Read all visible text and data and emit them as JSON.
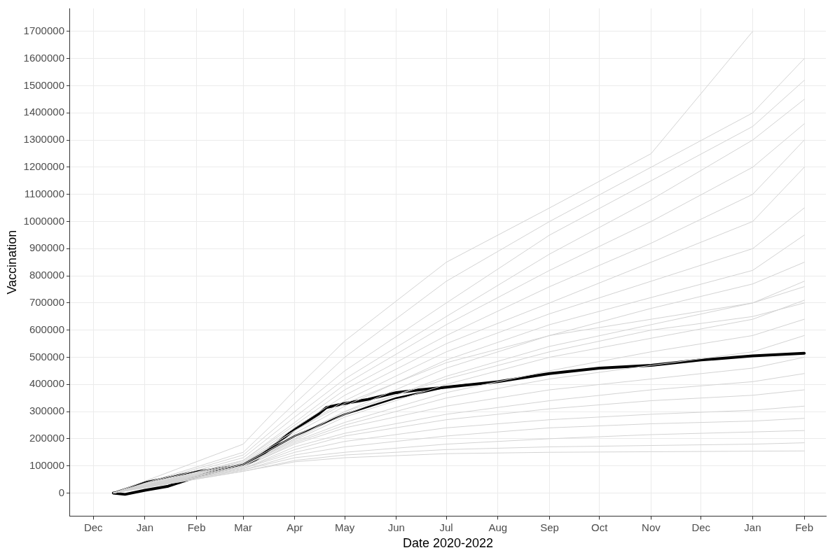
{
  "chart_data": {
    "type": "line",
    "xlabel": "Date 2020-2022",
    "ylabel": "Vaccination",
    "xlim": [
      "2020-11-17",
      "2022-02-14"
    ],
    "xticks": [
      {
        "value": "2020-12-01",
        "label": "Dec"
      },
      {
        "value": "2021-01-01",
        "label": "Jan"
      },
      {
        "value": "2021-02-01",
        "label": "Feb"
      },
      {
        "value": "2021-03-01",
        "label": "Mar"
      },
      {
        "value": "2021-04-01",
        "label": "Apr"
      },
      {
        "value": "2021-05-01",
        "label": "May"
      },
      {
        "value": "2021-06-01",
        "label": "Jun"
      },
      {
        "value": "2021-07-01",
        "label": "Jul"
      },
      {
        "value": "2021-08-01",
        "label": "Aug"
      },
      {
        "value": "2021-09-01",
        "label": "Sep"
      },
      {
        "value": "2021-10-01",
        "label": "Oct"
      },
      {
        "value": "2021-11-01",
        "label": "Nov"
      },
      {
        "value": "2021-12-01",
        "label": "Dec"
      },
      {
        "value": "2022-01-01",
        "label": "Jan"
      },
      {
        "value": "2022-02-01",
        "label": "Feb"
      }
    ],
    "ylim": [
      -85000,
      1785000
    ],
    "yticks": [
      0,
      100000,
      200000,
      300000,
      400000,
      500000,
      600000,
      700000,
      800000,
      900000,
      1000000,
      1100000,
      1200000,
      1300000,
      1400000,
      1500000,
      1600000,
      1700000
    ],
    "grid": true,
    "legend": false,
    "marker": "none",
    "x": [
      "2020-12-13",
      "2021-03-01",
      "2021-04-01",
      "2021-05-01",
      "2021-07-01",
      "2021-09-01",
      "2021-11-01",
      "2022-01-01",
      "2022-02-01"
    ],
    "series": [
      {
        "color": "#d3d3d3",
        "values": [
          0,
          180000,
          380000,
          560000,
          850000,
          1050000,
          1250000,
          1700000,
          null
        ]
      },
      {
        "color": "#d3d3d3",
        "values": [
          0,
          150000,
          330000,
          500000,
          780000,
          1000000,
          1200000,
          1400000,
          1600000
        ]
      },
      {
        "color": "#d3d3d3",
        "values": [
          0,
          140000,
          300000,
          450000,
          700000,
          950000,
          1150000,
          1350000,
          1520000
        ]
      },
      {
        "color": "#d3d3d3",
        "values": [
          0,
          130000,
          280000,
          420000,
          650000,
          880000,
          1080000,
          1300000,
          1450000
        ]
      },
      {
        "color": "#d3d3d3",
        "values": [
          0,
          120000,
          260000,
          400000,
          620000,
          820000,
          1000000,
          1200000,
          1360000
        ]
      },
      {
        "color": "#d3d3d3",
        "values": [
          0,
          120000,
          250000,
          380000,
          580000,
          760000,
          920000,
          1100000,
          1300000
        ]
      },
      {
        "color": "#d3d3d3",
        "values": [
          0,
          115000,
          240000,
          360000,
          550000,
          700000,
          850000,
          1000000,
          1200000
        ]
      },
      {
        "color": "#d3d3d3",
        "values": [
          0,
          110000,
          230000,
          340000,
          520000,
          660000,
          780000,
          900000,
          1050000
        ]
      },
      {
        "color": "#d3d3d3",
        "values": [
          0,
          110000,
          220000,
          320000,
          490000,
          620000,
          720000,
          820000,
          950000
        ]
      },
      {
        "color": "#d3d3d3",
        "values": [
          0,
          105000,
          210000,
          300000,
          460000,
          580000,
          680000,
          770000,
          850000
        ]
      },
      {
        "color": "#d3d3d3",
        "values": [
          0,
          110000,
          230000,
          330000,
          480000,
          580000,
          640000,
          700000,
          760000
        ]
      },
      {
        "color": "#d3d3d3",
        "values": [
          0,
          100000,
          200000,
          290000,
          430000,
          540000,
          620000,
          700000,
          780000
        ]
      },
      {
        "color": "#d3d3d3",
        "values": [
          0,
          100000,
          200000,
          300000,
          420000,
          520000,
          600000,
          650000,
          700000
        ]
      },
      {
        "color": "#d3d3d3",
        "values": [
          0,
          100000,
          195000,
          280000,
          400000,
          500000,
          570000,
          640000,
          710000
        ]
      },
      {
        "color": "#d3d3d3",
        "values": [
          0,
          100000,
          190000,
          260000,
          370000,
          450000,
          520000,
          580000,
          640000
        ]
      },
      {
        "color": "#d3d3d3",
        "values": [
          0,
          95000,
          185000,
          250000,
          350000,
          420000,
          470000,
          520000,
          580000
        ]
      },
      {
        "color": "#d3d3d3",
        "values": [
          0,
          95000,
          180000,
          240000,
          320000,
          380000,
          420000,
          460000,
          500000
        ]
      },
      {
        "color": "#d3d3d3",
        "values": [
          0,
          90000,
          170000,
          220000,
          290000,
          340000,
          380000,
          410000,
          440000
        ]
      },
      {
        "color": "#d3d3d3",
        "values": [
          0,
          90000,
          160000,
          210000,
          270000,
          310000,
          340000,
          360000,
          380000
        ]
      },
      {
        "color": "#d3d3d3",
        "values": [
          0,
          90000,
          150000,
          190000,
          240000,
          270000,
          290000,
          305000,
          320000
        ]
      },
      {
        "color": "#d3d3d3",
        "values": [
          0,
          85000,
          140000,
          170000,
          210000,
          240000,
          255000,
          265000,
          275000
        ]
      },
      {
        "color": "#d3d3d3",
        "values": [
          0,
          85000,
          130000,
          150000,
          180000,
          200000,
          215000,
          225000,
          230000
        ]
      },
      {
        "color": "#d3d3d3",
        "values": [
          0,
          80000,
          120000,
          140000,
          160000,
          170000,
          175000,
          180000,
          185000
        ]
      },
      {
        "color": "#d3d3d3",
        "values": [
          0,
          80000,
          115000,
          130000,
          145000,
          150000,
          152000,
          154000,
          155000
        ]
      },
      {
        "color": "#000000",
        "x": [
          "2020-12-13",
          "2021-01-01",
          "2021-02-01",
          "2021-03-01",
          "2021-04-01",
          "2021-05-01",
          "2021-06-01",
          "2021-07-01",
          "2021-07-15"
        ],
        "values": [
          0,
          40000,
          80000,
          105000,
          210000,
          290000,
          350000,
          390000,
          400000
        ]
      },
      {
        "color": "#000000",
        "x": [
          "2020-12-13",
          "2020-12-20",
          "2021-01-01",
          "2021-01-15",
          "2021-02-01",
          "2021-02-15",
          "2021-03-01",
          "2021-03-08",
          "2021-04-01",
          "2021-04-15",
          "2021-04-20",
          "2021-05-01",
          "2021-05-15",
          "2021-06-01",
          "2021-06-15",
          "2021-07-01",
          "2021-08-01",
          "2021-09-01",
          "2021-10-01",
          "2021-11-01",
          "2021-12-01",
          "2022-01-01",
          "2022-02-01"
        ],
        "values": [
          0,
          -5000,
          10000,
          25000,
          60000,
          85000,
          105000,
          120000,
          235000,
          290000,
          315000,
          330000,
          345000,
          370000,
          380000,
          390000,
          410000,
          440000,
          460000,
          470000,
          490000,
          505000,
          515000
        ]
      }
    ]
  }
}
